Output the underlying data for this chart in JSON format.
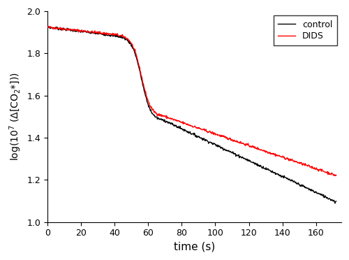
{
  "xlabel": "time (s)",
  "ylabel": "log(10$^7$ ($\\Delta$[CO$_2$*]))",
  "xlim": [
    0,
    175
  ],
  "ylim": [
    1.0,
    2.0
  ],
  "xticks": [
    0,
    20,
    40,
    60,
    80,
    100,
    120,
    140,
    160
  ],
  "yticks": [
    1.0,
    1.2,
    1.4,
    1.6,
    1.8,
    2.0
  ],
  "legend_labels": [
    "DIDS",
    "control"
  ],
  "dids_color": "#ff0000",
  "control_color": "#000000",
  "linewidth": 1.0,
  "phase1_end": 42,
  "phase2_end": 70,
  "total_time": 172,
  "start_val": 1.925,
  "phase1_end_val_dids": 1.888,
  "phase1_end_val_control": 1.882,
  "phase2_end_val_dids": 1.5,
  "phase2_end_val_control": 1.48,
  "end_val_dids": 1.22,
  "end_val_control": 1.095,
  "noise_amplitude": 0.003,
  "sigmoid_steepness": 10
}
